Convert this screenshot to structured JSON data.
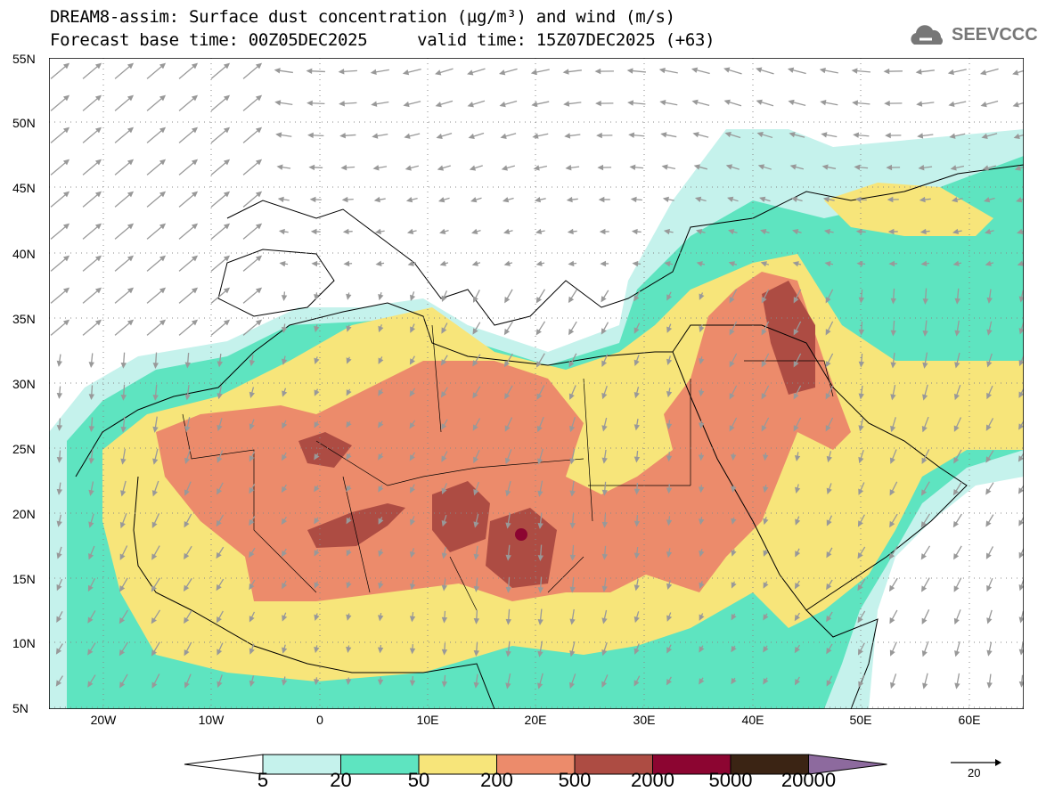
{
  "title_line1": "DREAM8-assim: Surface dust concentration (µg/m³) and wind (m/s)",
  "title_line2": "Forecast base time: 00Z05DEC2025     valid time: 15Z07DEC2025 (+63)",
  "logo_text": "SEEVCCC",
  "lat_labels": [
    "55N",
    "50N",
    "45N",
    "40N",
    "35N",
    "30N",
    "25N",
    "20N",
    "15N",
    "10N",
    "5N"
  ],
  "lon_labels": [
    "20W",
    "10W",
    "0",
    "10E",
    "20E",
    "30E",
    "40E",
    "50E",
    "60E"
  ],
  "colorbar": {
    "labels": [
      "5",
      "20",
      "50",
      "200",
      "500",
      "2000",
      "5000",
      "20000"
    ],
    "colors": [
      "#c5f2ec",
      "#5ee4c0",
      "#f7e57a",
      "#ec8b6b",
      "#ad4c43",
      "#8c0531",
      "#3b2414",
      "#8d6a9e"
    ]
  },
  "wind_reference": {
    "value": "20"
  }
}
